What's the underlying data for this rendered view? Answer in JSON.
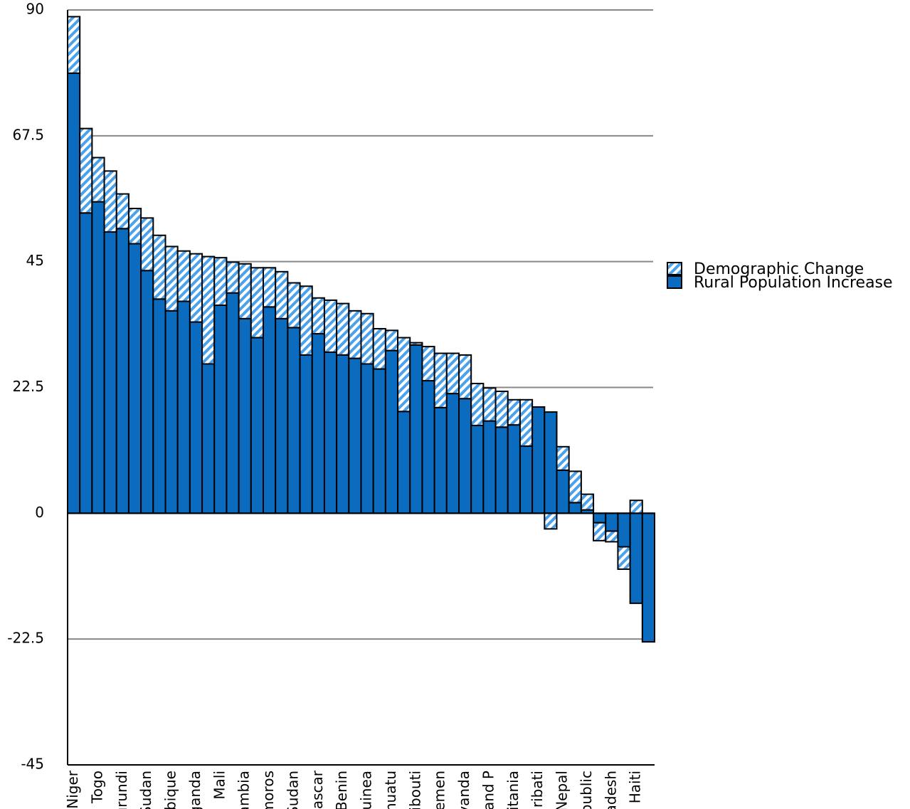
{
  "chart_data": {
    "type": "stacked_bar",
    "categories": [
      "Niger",
      null,
      "Togo",
      null,
      "urundi",
      null,
      "Sudan",
      null,
      "bique",
      null,
      "ganda",
      null,
      "Mali",
      null,
      "ambia",
      null,
      "moros",
      null,
      "Sudan",
      null,
      "gascar",
      null,
      "Benin",
      null,
      "uinea",
      null,
      "nuatu",
      null,
      "ibouti",
      null,
      "Yemen",
      null,
      "vanda",
      null,
      "and P",
      null,
      "itania",
      null,
      "ribati",
      null,
      "Nepal",
      null,
      "public",
      null,
      "adesh",
      null,
      "Haiti",
      null
    ],
    "series": [
      {
        "name": "Rural Population Increase",
        "color": "#0b6cbf",
        "hatch": false,
        "values": [
          78.7,
          53.7,
          55.7,
          50.3,
          50.9,
          48.2,
          43.4,
          38.3,
          36.2,
          37.9,
          34.2,
          26.7,
          37.2,
          39.4,
          34.8,
          31.4,
          36.9,
          34.8,
          33.2,
          28.3,
          32.1,
          28.8,
          28.3,
          27.7,
          26.7,
          25.8,
          29.1,
          18.2,
          30.1,
          23.7,
          18.9,
          21.4,
          20.5,
          15.7,
          16.5,
          15.4,
          15.8,
          12.0,
          19.0,
          18.1,
          7.7,
          1.9,
          0.6,
          -1.7,
          -3.2,
          -6.0,
          -16.1,
          -23.0
        ]
      },
      {
        "name": "Demographic Change",
        "color": "#4ba2ea",
        "hatch": true,
        "values": [
          10.1,
          15.1,
          7.9,
          10.9,
          6.2,
          6.3,
          9.4,
          11.4,
          11.5,
          9.0,
          12.2,
          19.2,
          8.5,
          5.5,
          9.8,
          12.5,
          7.0,
          8.4,
          8.0,
          12.3,
          6.4,
          9.3,
          9.2,
          8.5,
          9.0,
          7.2,
          3.6,
          13.2,
          0.4,
          6.1,
          9.7,
          7.2,
          7.8,
          7.5,
          5.9,
          6.4,
          4.5,
          8.3,
          0,
          -2.8,
          4.2,
          5.6,
          2.8,
          -3.2,
          -1.9,
          -4.0,
          2.3,
          0
        ]
      }
    ],
    "ylim": [
      -45,
      90
    ],
    "yticks": [
      -45,
      -22.5,
      0,
      22.5,
      45,
      67.5,
      90
    ],
    "grid": true,
    "legend": "right"
  }
}
